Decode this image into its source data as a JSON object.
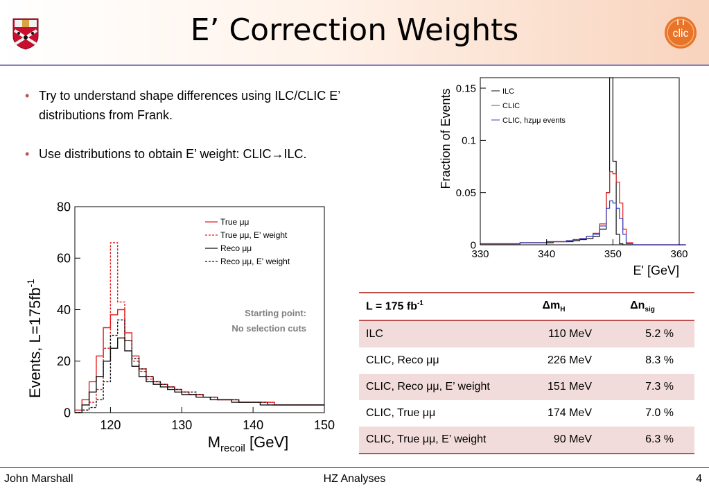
{
  "header": {
    "title": "E’ Correction Weights"
  },
  "bullets": [
    "Try to understand shape differences using ILC/CLIC E’ distributions from Frank.",
    "Use distributions to obtain E’ weight: CLIC→ILC."
  ],
  "annotation": {
    "line1": "Starting point:",
    "line2": "No selection cuts"
  },
  "colors": {
    "accent": "#c0504d",
    "header_line": "#8a7fbf",
    "blue_series": "#3040c0"
  },
  "table": {
    "header": {
      "label": "L = 175 fb",
      "label_sup": "-1",
      "col2": "Δm",
      "col2_sub": "H",
      "col3": "Δn",
      "col3_sub": "sig"
    },
    "rows": [
      {
        "label": "ILC",
        "dm": "110 MeV",
        "dn": "5.2 %"
      },
      {
        "label": "CLIC, Reco μμ",
        "dm": "226 MeV",
        "dn": "8.3 %"
      },
      {
        "label": "CLIC, Reco μμ, E’ weight",
        "dm": "151 MeV",
        "dn": "7.3 %"
      },
      {
        "label": "CLIC, True μμ",
        "dm": "174 MeV",
        "dn": "7.0 %"
      },
      {
        "label": "CLIC, True μμ, E’ weight",
        "dm": "90 MeV",
        "dn": "6.3 %"
      }
    ]
  },
  "footer": {
    "author": "John Marshall",
    "center": "HZ Analyses",
    "page": "4"
  },
  "chart_data": [
    {
      "type": "line",
      "xlabel": "M",
      "xlabel_sub": "recoil",
      "xlabel_unit": " [GeV]",
      "ylabel": "Events, L=175fb",
      "ylabel_sup": "-1",
      "xlim": [
        115,
        150
      ],
      "ylim": [
        0,
        80
      ],
      "x_ticks": [
        120,
        130,
        140,
        150
      ],
      "y_ticks": [
        0,
        20,
        40,
        60,
        80
      ],
      "legend_position": "top-right",
      "x": [
        115,
        116,
        117,
        118,
        119,
        120,
        121,
        122,
        123,
        124,
        125,
        126,
        127,
        128,
        129,
        130,
        131,
        132,
        133,
        134,
        135,
        136,
        137,
        138,
        139,
        140,
        141,
        142,
        143,
        144,
        145,
        146,
        147,
        148,
        149
      ],
      "series": [
        {
          "name": "True μμ",
          "color": "#e41a1c",
          "dash": "",
          "values": [
            1,
            5,
            12,
            22,
            33,
            38,
            40,
            31,
            22,
            17,
            14,
            12,
            11,
            10,
            9,
            8,
            7,
            7,
            6,
            6,
            5,
            5,
            5,
            4,
            4,
            4,
            4,
            4,
            3,
            3,
            3,
            3,
            3,
            3,
            3
          ]
        },
        {
          "name": "True μμ, E' weight",
          "color": "#e41a1c",
          "dash": "3,2",
          "values": [
            0,
            1,
            4,
            9,
            25,
            66,
            43,
            28,
            20,
            16,
            13,
            12,
            11,
            10,
            9,
            8,
            7,
            7,
            6,
            6,
            5,
            5,
            5,
            4,
            4,
            4,
            4,
            4,
            3,
            3,
            3,
            3,
            3,
            3,
            3
          ]
        },
        {
          "name": "Reco μμ",
          "color": "#111111",
          "dash": "",
          "values": [
            0,
            3,
            8,
            14,
            20,
            25,
            29,
            24,
            18,
            14,
            12,
            11,
            10,
            9,
            8,
            7,
            7,
            6,
            6,
            5,
            5,
            5,
            4,
            4,
            4,
            4,
            3,
            3,
            3,
            3,
            3,
            3,
            3,
            3,
            3
          ]
        },
        {
          "name": "Reco μμ, E' weight",
          "color": "#111111",
          "dash": "3,2",
          "values": [
            0,
            1,
            2,
            5,
            12,
            30,
            36,
            28,
            21,
            17,
            14,
            12,
            11,
            10,
            9,
            8,
            8,
            7,
            6,
            6,
            5,
            5,
            5,
            4,
            4,
            4,
            4,
            3,
            3,
            3,
            3,
            3,
            3,
            3,
            3
          ]
        }
      ]
    },
    {
      "type": "line",
      "xlabel": "E' [GeV]",
      "ylabel": "Fraction of Events",
      "xlim": [
        330,
        360
      ],
      "ylim": [
        0,
        0.16
      ],
      "x_ticks": [
        330,
        340,
        350,
        360
      ],
      "y_ticks": [
        0,
        0.05,
        0.1,
        0.15
      ],
      "y_tick_labels": [
        "0",
        "0.05",
        "0.1",
        "0.15"
      ],
      "legend_position": "top-left",
      "x": [
        330,
        331,
        332,
        333,
        334,
        335,
        336,
        337,
        338,
        339,
        340,
        341,
        342,
        343,
        344,
        345,
        346,
        347,
        348,
        349,
        349.5,
        350,
        350.5,
        351,
        351.5,
        352,
        353,
        354,
        355,
        356,
        357,
        358,
        359,
        360
      ],
      "series": [
        {
          "name": "ILC",
          "color": "#111111",
          "values": [
            0.001,
            0.001,
            0.001,
            0.001,
            0.001,
            0.001,
            0.002,
            0.002,
            0.002,
            0.002,
            0.002,
            0.003,
            0.003,
            0.003,
            0.004,
            0.005,
            0.006,
            0.008,
            0.015,
            0.05,
            0.16,
            0.08,
            0.01,
            0.001,
            0,
            0,
            0,
            0,
            0,
            0,
            0,
            0,
            0,
            0
          ]
        },
        {
          "name": "CLIC",
          "color": "#e41a1c",
          "values": [
            0.001,
            0.001,
            0.001,
            0.001,
            0.001,
            0.001,
            0.002,
            0.002,
            0.002,
            0.002,
            0.003,
            0.003,
            0.003,
            0.004,
            0.005,
            0.006,
            0.008,
            0.011,
            0.02,
            0.05,
            0.07,
            0.068,
            0.06,
            0.04,
            0.015,
            0.002,
            0,
            0,
            0,
            0,
            0,
            0,
            0,
            0
          ]
        },
        {
          "name": "CLIC, hzμμ events",
          "color": "#3040c0",
          "values": [
            0.001,
            0.001,
            0.001,
            0.001,
            0.001,
            0.001,
            0.002,
            0.002,
            0.002,
            0.002,
            0.003,
            0.003,
            0.003,
            0.004,
            0.005,
            0.006,
            0.008,
            0.01,
            0.018,
            0.035,
            0.042,
            0.04,
            0.035,
            0.025,
            0.01,
            0.001,
            0,
            0,
            0,
            0,
            0,
            0,
            0,
            0
          ]
        }
      ]
    }
  ]
}
